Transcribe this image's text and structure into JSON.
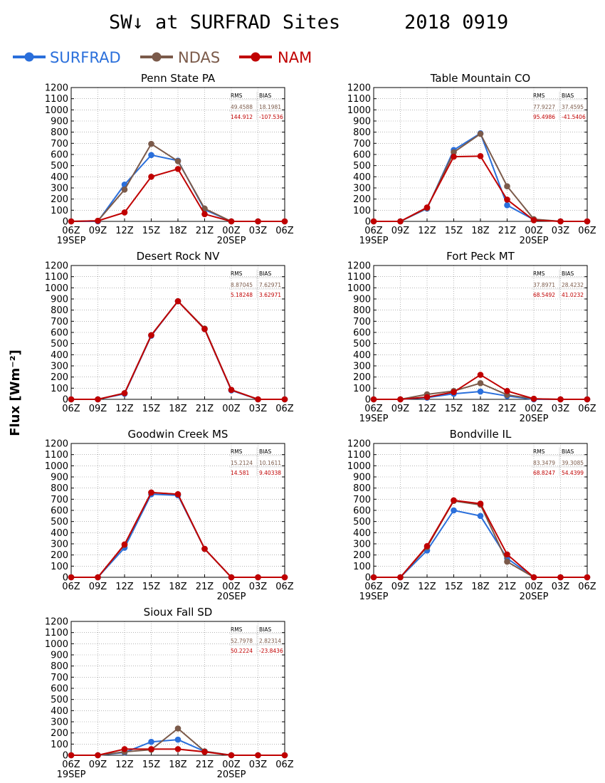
{
  "title": "SW↓ at SURFRAD Sites",
  "date": "2018 0919",
  "ylabel": "Flux [Wm⁻²]",
  "legend": [
    {
      "name": "SURFRAD",
      "color": "#2a6fdb"
    },
    {
      "name": "NDAS",
      "color": "#7b5a4a"
    },
    {
      "name": "NAM",
      "color": "#c00000"
    }
  ],
  "stats_header": {
    "rms": "RMS",
    "bias": "BIAS"
  },
  "chart_data": [
    {
      "type": "line",
      "title": "Penn State PA",
      "x": [
        "06Z",
        "09Z",
        "12Z",
        "15Z",
        "18Z",
        "21Z",
        "00Z",
        "03Z",
        "06Z"
      ],
      "x_date_labels": [
        "19SEP",
        "",
        "",
        "",
        "",
        "",
        "20SEP",
        "",
        ""
      ],
      "ylim": [
        0,
        1200
      ],
      "yticks": [
        0,
        100,
        200,
        300,
        400,
        500,
        600,
        700,
        800,
        900,
        1000,
        1100,
        1200
      ],
      "grid": true,
      "stats": {
        "ndas": {
          "rms": "49.4588",
          "bias": "18.1981"
        },
        "nam": {
          "rms": "144.912",
          "bias": "-107.536"
        }
      },
      "series": [
        {
          "name": "SURFRAD",
          "values": [
            0,
            0,
            330,
            595,
            545,
            105,
            0,
            0,
            0
          ]
        },
        {
          "name": "NDAS",
          "values": [
            0,
            5,
            285,
            695,
            540,
            115,
            0,
            0,
            0
          ]
        },
        {
          "name": "NAM",
          "values": [
            0,
            5,
            80,
            400,
            470,
            65,
            0,
            0,
            0
          ]
        }
      ]
    },
    {
      "type": "line",
      "title": "Table Mountain CO",
      "x": [
        "06Z",
        "09Z",
        "12Z",
        "15Z",
        "18Z",
        "21Z",
        "00Z",
        "03Z",
        "06Z"
      ],
      "x_date_labels": [
        "19SEP",
        "",
        "",
        "",
        "",
        "",
        "20SEP",
        "",
        ""
      ],
      "ylim": [
        0,
        1200
      ],
      "yticks": [
        0,
        100,
        200,
        300,
        400,
        500,
        600,
        700,
        800,
        900,
        1000,
        1100,
        1200
      ],
      "grid": true,
      "stats": {
        "ndas": {
          "rms": "77.9227",
          "bias": "37.4595"
        },
        "nam": {
          "rms": "95.4986",
          "bias": "-41.5406"
        }
      },
      "series": [
        {
          "name": "SURFRAD",
          "values": [
            0,
            0,
            115,
            640,
            790,
            145,
            15,
            0,
            0
          ]
        },
        {
          "name": "NDAS",
          "values": [
            0,
            0,
            120,
            620,
            785,
            315,
            20,
            0,
            0
          ]
        },
        {
          "name": "NAM",
          "values": [
            0,
            0,
            125,
            580,
            585,
            195,
            10,
            0,
            0
          ]
        }
      ]
    },
    {
      "type": "line",
      "title": "Desert Rock NV",
      "x": [
        "06Z",
        "09Z",
        "12Z",
        "15Z",
        "18Z",
        "21Z",
        "00Z",
        "03Z",
        "06Z"
      ],
      "x_date_labels": [
        "",
        "",
        "",
        "",
        "",
        "",
        "",
        "",
        ""
      ],
      "ylim": [
        0,
        1200
      ],
      "yticks": [
        0,
        100,
        200,
        300,
        400,
        500,
        600,
        700,
        800,
        900,
        1000,
        1100,
        1200
      ],
      "grid": true,
      "stats": {
        "ndas": {
          "rms": "8.87045",
          "bias": "7.62971"
        },
        "nam": {
          "rms": "5.18248",
          "bias": "3.62971"
        }
      },
      "series": [
        {
          "name": "SURFRAD",
          "values": [
            0,
            0,
            50,
            570,
            880,
            630,
            80,
            0,
            0
          ]
        },
        {
          "name": "NDAS",
          "values": [
            0,
            0,
            55,
            575,
            880,
            635,
            85,
            0,
            0
          ]
        },
        {
          "name": "NAM",
          "values": [
            0,
            0,
            55,
            575,
            880,
            630,
            85,
            0,
            0
          ]
        }
      ]
    },
    {
      "type": "line",
      "title": "Fort Peck MT",
      "x": [
        "06Z",
        "09Z",
        "12Z",
        "15Z",
        "18Z",
        "21Z",
        "00Z",
        "03Z",
        "06Z"
      ],
      "x_date_labels": [
        "19SEP",
        "",
        "",
        "",
        "",
        "",
        "20SEP",
        "",
        ""
      ],
      "ylim": [
        0,
        1200
      ],
      "yticks": [
        0,
        100,
        200,
        300,
        400,
        500,
        600,
        700,
        800,
        900,
        1000,
        1100,
        1200
      ],
      "grid": true,
      "stats": {
        "ndas": {
          "rms": "37.8971",
          "bias": "28.4232"
        },
        "nam": {
          "rms": "68.5492",
          "bias": "41.0232"
        }
      },
      "series": [
        {
          "name": "SURFRAD",
          "values": [
            0,
            0,
            15,
            50,
            70,
            30,
            0,
            0,
            0
          ]
        },
        {
          "name": "NDAS",
          "values": [
            0,
            0,
            45,
            75,
            145,
            40,
            5,
            0,
            0
          ]
        },
        {
          "name": "NAM",
          "values": [
            0,
            0,
            20,
            65,
            220,
            75,
            5,
            0,
            0
          ]
        }
      ]
    },
    {
      "type": "line",
      "title": "Goodwin Creek MS",
      "x": [
        "06Z",
        "09Z",
        "12Z",
        "15Z",
        "18Z",
        "21Z",
        "00Z",
        "03Z",
        "06Z"
      ],
      "x_date_labels": [
        "",
        "",
        "",
        "",
        "",
        "",
        "20SEP",
        "",
        ""
      ],
      "ylim": [
        0,
        1200
      ],
      "yticks": [
        0,
        100,
        200,
        300,
        400,
        500,
        600,
        700,
        800,
        900,
        1000,
        1100,
        1200
      ],
      "grid": true,
      "stats": {
        "ndas": {
          "rms": "15.2124",
          "bias": "10.1611"
        },
        "nam": {
          "rms": "14.581",
          "bias": "9.40338"
        }
      },
      "series": [
        {
          "name": "SURFRAD",
          "values": [
            0,
            0,
            265,
            745,
            735,
            255,
            0,
            0,
            0
          ]
        },
        {
          "name": "NDAS",
          "values": [
            0,
            0,
            290,
            760,
            745,
            255,
            0,
            0,
            0
          ]
        },
        {
          "name": "NAM",
          "values": [
            0,
            0,
            295,
            760,
            745,
            255,
            0,
            0,
            0
          ]
        }
      ]
    },
    {
      "type": "line",
      "title": "Bondville IL",
      "x": [
        "06Z",
        "09Z",
        "12Z",
        "15Z",
        "18Z",
        "21Z",
        "00Z",
        "03Z",
        "06Z"
      ],
      "x_date_labels": [
        "19SEP",
        "",
        "",
        "",
        "",
        "",
        "20SEP",
        "",
        ""
      ],
      "ylim": [
        0,
        1200
      ],
      "yticks": [
        0,
        100,
        200,
        300,
        400,
        500,
        600,
        700,
        800,
        900,
        1000,
        1100,
        1200
      ],
      "grid": true,
      "stats": {
        "ndas": {
          "rms": "83.3479",
          "bias": "39.3085"
        },
        "nam": {
          "rms": "68.8247",
          "bias": "54.4399"
        }
      },
      "series": [
        {
          "name": "SURFRAD",
          "values": [
            0,
            0,
            240,
            600,
            550,
            170,
            0,
            0,
            0
          ]
        },
        {
          "name": "NDAS",
          "values": [
            0,
            0,
            270,
            685,
            650,
            140,
            0,
            0,
            0
          ]
        },
        {
          "name": "NAM",
          "values": [
            0,
            0,
            280,
            690,
            660,
            205,
            0,
            0,
            0
          ]
        }
      ]
    },
    {
      "type": "line",
      "title": "Sioux Fall SD",
      "x": [
        "06Z",
        "09Z",
        "12Z",
        "15Z",
        "18Z",
        "21Z",
        "00Z",
        "03Z",
        "06Z"
      ],
      "x_date_labels": [
        "19SEP",
        "",
        "",
        "",
        "",
        "",
        "20SEP",
        "",
        ""
      ],
      "ylim": [
        0,
        1200
      ],
      "yticks": [
        0,
        100,
        200,
        300,
        400,
        500,
        600,
        700,
        800,
        900,
        1000,
        1100,
        1200
      ],
      "grid": true,
      "stats": {
        "ndas": {
          "rms": "52.7978",
          "bias": "2.82314"
        },
        "nam": {
          "rms": "50.2224",
          "bias": "-23.8436"
        }
      },
      "series": [
        {
          "name": "SURFRAD",
          "values": [
            0,
            0,
            25,
            120,
            140,
            35,
            0,
            0,
            0
          ]
        },
        {
          "name": "NDAS",
          "values": [
            0,
            0,
            30,
            50,
            240,
            35,
            0,
            0,
            0
          ]
        },
        {
          "name": "NAM",
          "values": [
            0,
            0,
            55,
            55,
            55,
            30,
            0,
            0,
            0
          ]
        }
      ]
    }
  ]
}
